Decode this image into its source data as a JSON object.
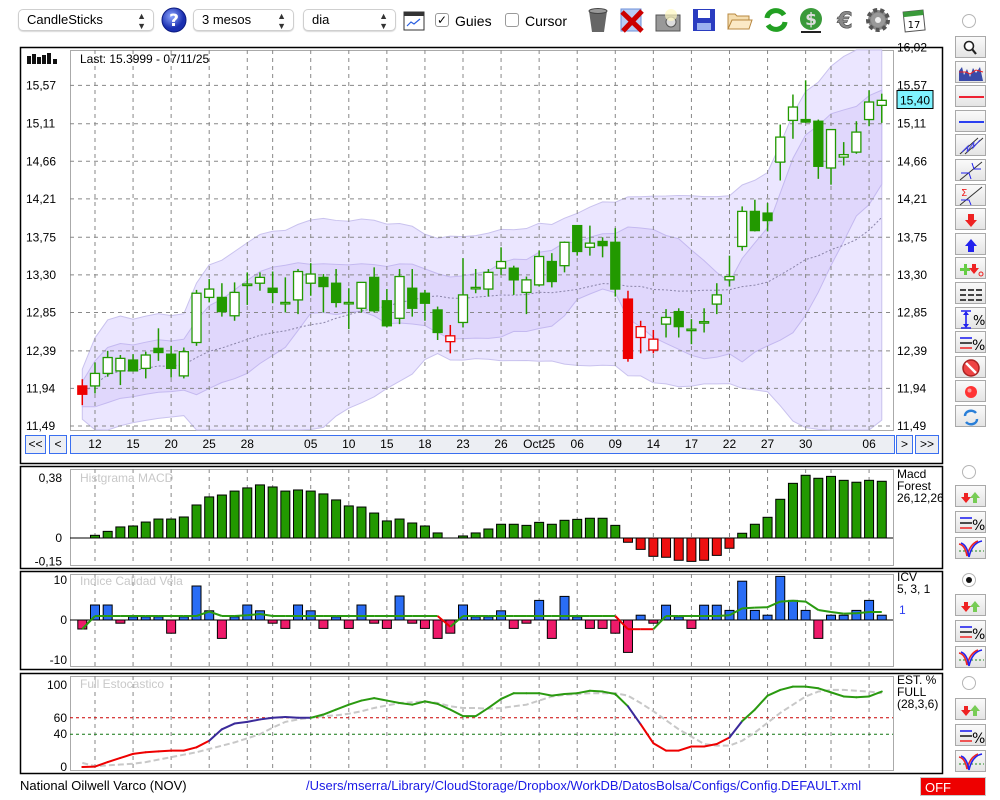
{
  "toolbar": {
    "chart_type": "CandleSticks",
    "period": "3 mesos",
    "interval": "dia",
    "guies_label": "Guies",
    "guies_checked": true,
    "cursor_label": "Cursor",
    "cursor_checked": false,
    "check_mark": "✓"
  },
  "main": {
    "last_label": "Last: 15.3999 - 07/11/25",
    "current_price": "15,40",
    "current_price_value": 15.4,
    "price_axis_right": [
      {
        "label": "16,02",
        "value": 16.02
      },
      {
        "label": "15,57",
        "value": 15.57
      },
      {
        "label": "15,11",
        "value": 15.11
      },
      {
        "label": "14,66",
        "value": 14.66
      },
      {
        "label": "14,21",
        "value": 14.21
      },
      {
        "label": "13,75",
        "value": 13.75
      },
      {
        "label": "13,30",
        "value": 13.3
      },
      {
        "label": "12,85",
        "value": 12.85
      },
      {
        "label": "12,39",
        "value": 12.39
      },
      {
        "label": "11,94",
        "value": 11.94
      },
      {
        "label": "11,49",
        "value": 11.49
      }
    ],
    "price_axis_left": [
      {
        "label": "15,57",
        "value": 15.57
      },
      {
        "label": "15,11",
        "value": 15.11
      },
      {
        "label": "14,66",
        "value": 14.66
      },
      {
        "label": "14,21",
        "value": 14.21
      },
      {
        "label": "13,75",
        "value": 13.75
      },
      {
        "label": "13,30",
        "value": 13.3
      },
      {
        "label": "12,85",
        "value": 12.85
      },
      {
        "label": "12,39",
        "value": 12.39
      },
      {
        "label": "11,94",
        "value": 11.94
      },
      {
        "label": "11,49",
        "value": 11.49
      }
    ],
    "nav": {
      "first": "<<",
      "prev": "<",
      "next": ">",
      "last": ">>"
    },
    "x_ticks": [
      {
        "index": 1,
        "label": "12"
      },
      {
        "index": 4,
        "label": "15"
      },
      {
        "index": 7,
        "label": "20"
      },
      {
        "index": 10,
        "label": "25"
      },
      {
        "index": 13,
        "label": "28"
      },
      {
        "index": 15,
        "label": ""
      },
      {
        "index": 18,
        "label": "05"
      },
      {
        "index": 21,
        "label": "10"
      },
      {
        "index": 24,
        "label": "15"
      },
      {
        "index": 27,
        "label": "18"
      },
      {
        "index": 30,
        "label": "23"
      },
      {
        "index": 33,
        "label": "26"
      },
      {
        "index": 36,
        "label": "Oct25"
      },
      {
        "index": 39,
        "label": "06"
      },
      {
        "index": 42,
        "label": "09"
      },
      {
        "index": 45,
        "label": "14"
      },
      {
        "index": 48,
        "label": "17"
      },
      {
        "index": 51,
        "label": "22"
      },
      {
        "index": 54,
        "label": "27"
      },
      {
        "index": 57,
        "label": "30"
      },
      {
        "index": 59,
        "label": ""
      },
      {
        "index": 62,
        "label": "06"
      }
    ],
    "candles_ohlc": [
      [
        11.97,
        12.05,
        11.74,
        11.87
      ],
      [
        11.97,
        12.25,
        11.88,
        12.12
      ],
      [
        12.12,
        12.39,
        12.08,
        12.31
      ],
      [
        12.15,
        12.34,
        11.98,
        12.3
      ],
      [
        12.28,
        12.35,
        12.15,
        12.15
      ],
      [
        12.18,
        12.38,
        12.06,
        12.34
      ],
      [
        12.42,
        12.66,
        12.27,
        12.37
      ],
      [
        12.35,
        12.45,
        12.07,
        12.18
      ],
      [
        12.09,
        12.43,
        12.06,
        12.38
      ],
      [
        12.49,
        13.12,
        12.45,
        13.08
      ],
      [
        13.03,
        13.25,
        12.97,
        13.13
      ],
      [
        13.03,
        13.2,
        12.8,
        12.86
      ],
      [
        12.81,
        13.21,
        12.75,
        13.09
      ],
      [
        13.18,
        13.33,
        12.94,
        13.19
      ],
      [
        13.2,
        13.33,
        13.11,
        13.27
      ],
      [
        13.14,
        13.34,
        12.96,
        13.09
      ],
      [
        12.96,
        13.27,
        12.85,
        12.97
      ],
      [
        13.0,
        13.37,
        12.83,
        13.34
      ],
      [
        13.2,
        13.44,
        13.05,
        13.31
      ],
      [
        13.27,
        13.31,
        12.85,
        13.16
      ],
      [
        13.2,
        13.37,
        12.91,
        12.97
      ],
      [
        12.97,
        13.14,
        12.65,
        12.97
      ],
      [
        12.9,
        13.21,
        12.85,
        13.21
      ],
      [
        13.27,
        13.39,
        12.85,
        12.87
      ],
      [
        12.99,
        13.13,
        12.67,
        12.69
      ],
      [
        12.78,
        13.37,
        12.71,
        13.28
      ],
      [
        13.14,
        13.37,
        12.8,
        12.9
      ],
      [
        13.08,
        13.12,
        12.75,
        12.96
      ],
      [
        12.88,
        12.92,
        12.52,
        12.61
      ],
      [
        12.5,
        12.7,
        12.36,
        12.57
      ],
      [
        12.73,
        13.5,
        12.67,
        13.06
      ],
      [
        13.15,
        13.37,
        13.08,
        13.15
      ],
      [
        13.13,
        13.37,
        13.04,
        13.33
      ],
      [
        13.38,
        13.63,
        13.3,
        13.46
      ],
      [
        13.38,
        13.41,
        13.06,
        13.24
      ],
      [
        13.09,
        13.28,
        12.83,
        13.24
      ],
      [
        13.18,
        13.59,
        13.16,
        13.52
      ],
      [
        13.46,
        13.56,
        13.15,
        13.22
      ],
      [
        13.41,
        13.7,
        13.33,
        13.69
      ],
      [
        13.89,
        13.89,
        13.53,
        13.58
      ],
      [
        13.63,
        13.89,
        13.53,
        13.68
      ],
      [
        13.7,
        13.75,
        13.51,
        13.65
      ],
      [
        13.69,
        13.86,
        13.04,
        13.13
      ],
      [
        13.01,
        13.11,
        12.26,
        12.3
      ],
      [
        12.55,
        12.75,
        12.36,
        12.68
      ],
      [
        12.4,
        12.64,
        12.36,
        12.53
      ],
      [
        12.71,
        12.89,
        12.55,
        12.79
      ],
      [
        12.86,
        12.9,
        12.55,
        12.68
      ],
      [
        12.65,
        12.77,
        12.47,
        12.65
      ],
      [
        12.74,
        12.9,
        12.61,
        12.74
      ],
      [
        12.95,
        13.2,
        12.83,
        13.06
      ],
      [
        13.24,
        13.53,
        13.16,
        13.28
      ],
      [
        13.64,
        14.12,
        13.59,
        14.06
      ],
      [
        14.06,
        14.2,
        13.82,
        13.83
      ],
      [
        14.04,
        14.16,
        13.82,
        13.95
      ],
      [
        14.65,
        15.1,
        14.43,
        14.95
      ],
      [
        15.15,
        15.46,
        14.93,
        15.31
      ],
      [
        15.16,
        15.63,
        15.12,
        15.13
      ],
      [
        15.14,
        15.16,
        14.45,
        14.6
      ],
      [
        14.58,
        15.04,
        14.38,
        15.04
      ],
      [
        14.71,
        14.89,
        14.61,
        14.74
      ],
      [
        14.77,
        15.14,
        14.75,
        15.01
      ],
      [
        15.16,
        15.51,
        15.08,
        15.37
      ],
      [
        15.33,
        15.47,
        15.12,
        15.39
      ]
    ],
    "red_candles": [
      0,
      29,
      43,
      44,
      45
    ]
  },
  "macd": {
    "title": "Histgrama MACD",
    "legend": [
      "Macd",
      "Forest",
      "26,12,26"
    ],
    "y_ticks": [
      {
        "label": "0,38",
        "value": 0.38
      },
      {
        "label": "0",
        "value": 0
      },
      {
        "label": "-0,15",
        "value": -0.15
      }
    ],
    "values": [
      0,
      0.017,
      0.042,
      0.07,
      0.076,
      0.101,
      0.12,
      0.12,
      0.133,
      0.209,
      0.26,
      0.272,
      0.297,
      0.317,
      0.336,
      0.323,
      0.297,
      0.304,
      0.297,
      0.279,
      0.241,
      0.203,
      0.196,
      0.158,
      0.108,
      0.12,
      0.095,
      0.076,
      0.032,
      0,
      0.013,
      0.032,
      0.057,
      0.087,
      0.087,
      0.08,
      0.099,
      0.087,
      0.112,
      0.118,
      0.125,
      0.125,
      0.08,
      -0.027,
      -0.072,
      -0.116,
      -0.122,
      -0.141,
      -0.148,
      -0.141,
      -0.11,
      -0.065,
      0.03,
      0.087,
      0.131,
      0.245,
      0.346,
      0.397,
      0.378,
      0.39,
      0.365,
      0.353,
      0.365,
      0.359
    ]
  },
  "icv": {
    "title": "Indice Calidad Vela",
    "legend": [
      "ICV",
      "5, 3, 1"
    ],
    "legend_value": "1",
    "y_ticks": [
      {
        "label": "10",
        "value": 10
      },
      {
        "label": "0",
        "value": 0
      },
      {
        "label": "-10",
        "value": -10
      }
    ],
    "values": [
      -2.25,
      3.75,
      3.75,
      -0.8,
      0.8,
      0.8,
      0.8,
      -3.3,
      0.8,
      8.5,
      2.3,
      -4.6,
      0.8,
      3.75,
      2.3,
      -0.8,
      -2.1,
      3.75,
      2.3,
      -2.1,
      0.8,
      -2.1,
      3.75,
      -0.8,
      -2.1,
      6,
      -0.8,
      -2.1,
      -4.6,
      -3.3,
      3.75,
      0.8,
      0.8,
      2.3,
      -2.1,
      -0.8,
      4.9,
      -4.6,
      5.9,
      0.8,
      -2.1,
      -2.1,
      -3.3,
      -8.1,
      1.2,
      -0.8,
      3.7,
      0.8,
      -2.1,
      3.7,
      3.7,
      2.4,
      9.7,
      2.4,
      1.2,
      10.9,
      4.9,
      2.4,
      -4.6,
      1.2,
      1.2,
      2.4,
      4.9,
      1.2
    ],
    "signal": [
      -2.25,
      1,
      1,
      1,
      1,
      1,
      1,
      1,
      1,
      1,
      2.1,
      1,
      1,
      1.2,
      1.5,
      1,
      1,
      1,
      1,
      1,
      1,
      1,
      1,
      1,
      1,
      1,
      1,
      1,
      1,
      -1.7,
      1,
      1,
      1,
      1,
      1,
      1,
      1,
      1,
      1,
      1,
      1,
      1,
      1,
      -2.3,
      -2.3,
      -2.3,
      1,
      1,
      1,
      1,
      1,
      1.2,
      2.9,
      3.1,
      3.2,
      4.6,
      4.8,
      4.6,
      2.5,
      2,
      1.6,
      1.7,
      2,
      2
    ]
  },
  "stoch": {
    "title": "Full Estocastico",
    "legend": [
      "EST. %",
      "FULL",
      "(28,3,6)"
    ],
    "y_ticks": [
      {
        "label": "100",
        "value": 100
      },
      {
        "label": "60",
        "value": 60
      },
      {
        "label": "40",
        "value": 40
      },
      {
        "label": "0",
        "value": 0
      }
    ],
    "levels": [
      60,
      40
    ],
    "k": [
      0,
      0.5,
      6,
      11,
      16,
      18,
      19,
      20,
      20,
      24,
      32,
      46,
      53,
      55,
      58,
      60,
      61,
      60,
      60,
      64,
      70,
      76,
      81,
      84,
      81,
      78,
      76,
      80,
      77,
      70,
      62,
      62,
      72,
      83,
      90,
      90,
      90,
      87,
      89,
      90,
      93,
      92,
      89,
      74,
      52,
      29,
      20,
      20,
      25,
      25,
      28,
      36,
      56,
      70,
      87,
      94,
      98,
      98,
      96,
      91,
      86,
      85,
      86,
      92
    ],
    "d": [
      5,
      1,
      2,
      3,
      4,
      6,
      9,
      12,
      15,
      18,
      22,
      26,
      30,
      35,
      40,
      48,
      55,
      58,
      60,
      62,
      63,
      65,
      68,
      72,
      75,
      78,
      79,
      80,
      78,
      74,
      72,
      72,
      71,
      72,
      74,
      76,
      81,
      86,
      88,
      89,
      90,
      90,
      90,
      87,
      78,
      68,
      57,
      46,
      37,
      28,
      26,
      26,
      32,
      42,
      54,
      66,
      76,
      86,
      92,
      94,
      94,
      93,
      92,
      90
    ]
  },
  "status": {
    "name": "National Oilwell Varco (NOV)",
    "path": "/Users/mserra/Library/CloudStorage/Dropbox/WorkDB/DatosBolsa/Configs/Config.DEFAULT.xml",
    "off_label": "OFF"
  },
  "panel_selector": {
    "selected": "icv"
  },
  "colors": {
    "up": "#229900",
    "down_red": "#ee0000",
    "macd_pos": "#229900",
    "macd_neg": "#ee1010",
    "icv_pos": "#2a6df5",
    "icv_neg": "#ee1a6a",
    "band_outer": "#ebe6ff",
    "band_inner": "#ddd3fb",
    "stoch_green": "#2a9a10",
    "stoch_purple": "#3a2a9a",
    "stoch_red": "#ee0000",
    "price_badge": "#7ff3ff"
  },
  "icons": {
    "toolbar": [
      "help-icon",
      "chart-window-icon",
      "trash-icon",
      "delete-icon",
      "camera-icon",
      "save-icon",
      "folder-icon",
      "refresh-icon",
      "dollar-icon",
      "euro-icon",
      "gear-icon",
      "calendar-icon"
    ],
    "side": [
      "zoom-icon",
      "volume-chart-icon",
      "red-line-icon",
      "blue-line-icon",
      "channel-icon",
      "trendline-icon",
      "sigma-trendline-icon",
      "sell-arrow-icon",
      "buy-arrow-icon",
      "add-signal-icon",
      "grid-lines-icon",
      "range-percent-icon",
      "lines-percent-icon",
      "no-entry-icon",
      "record-icon",
      "sync-icon"
    ]
  }
}
